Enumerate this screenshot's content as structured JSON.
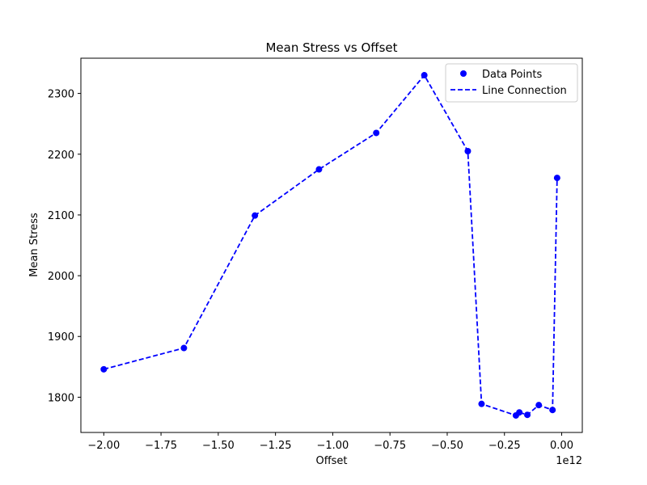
{
  "chart_data": {
    "type": "line",
    "title": "Mean Stress vs Offset",
    "xlabel": "Offset",
    "ylabel": "Mean Stress",
    "x_offset_label": "1e12",
    "xlim": [
      -2.1,
      0.09
    ],
    "ylim": [
      1742,
      2358
    ],
    "x_ticks": [
      -2.0,
      -1.75,
      -1.5,
      -1.25,
      -1.0,
      -0.75,
      -0.5,
      -0.25,
      0.0
    ],
    "x_tick_labels": [
      "−2.00",
      "−1.75",
      "−1.50",
      "−1.25",
      "−1.00",
      "−0.75",
      "−0.50",
      "−0.25",
      "0.00"
    ],
    "y_ticks": [
      1800,
      1900,
      2000,
      2100,
      2200,
      2300
    ],
    "y_tick_labels": [
      "1800",
      "1900",
      "2000",
      "2100",
      "2200",
      "2300"
    ],
    "grid": false,
    "legend_position": "top-right",
    "series": [
      {
        "name": "Data Points",
        "style": "markers",
        "color": "#0000ff",
        "x": [
          -2.0,
          -1.65,
          -1.34,
          -1.06,
          -0.81,
          -0.6,
          -0.41,
          -0.35,
          -0.2,
          -0.185,
          -0.15,
          -0.1,
          -0.04,
          -0.02
        ],
        "y": [
          1846,
          1881,
          2099,
          2175,
          2235,
          2330,
          2205,
          1789,
          1770,
          1775,
          1771,
          1787,
          1779,
          2161
        ]
      },
      {
        "name": "Line Connection",
        "style": "dashed-line",
        "color": "#0000ff",
        "x": [
          -2.0,
          -1.65,
          -1.34,
          -1.06,
          -0.81,
          -0.6,
          -0.41,
          -0.35,
          -0.2,
          -0.185,
          -0.15,
          -0.1,
          -0.04,
          -0.02
        ],
        "y": [
          1846,
          1881,
          2099,
          2175,
          2235,
          2330,
          2205,
          1789,
          1770,
          1775,
          1771,
          1787,
          1779,
          2161
        ]
      }
    ]
  }
}
